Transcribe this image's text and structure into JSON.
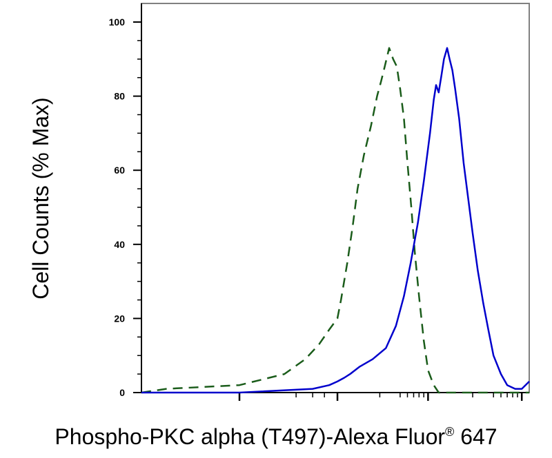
{
  "chart_data": {
    "type": "line",
    "title": "",
    "xlabel": "Phospho-PKC alpha (T497)-Alexa Fluor",
    "xlabel_sup": "®",
    "xlabel_suffix": " 647",
    "ylabel": "Cell Counts (% Max)",
    "x_scale": "log",
    "xlim": [
      -10,
      1200
    ],
    "ylim": [
      0,
      100
    ],
    "y_ticks": [
      0,
      20,
      40,
      60,
      80,
      100
    ],
    "y_tick_labels": [
      "0",
      "20",
      "40",
      "60",
      "80",
      "100"
    ],
    "grid": false,
    "legend": "none",
    "series": [
      {
        "color": "#1a5c1a",
        "dash": "dashed",
        "points": [
          [
            -10,
            0
          ],
          [
            -5,
            1
          ],
          [
            0,
            2
          ],
          [
            2,
            5
          ],
          [
            4,
            9
          ],
          [
            6,
            13
          ],
          [
            8,
            17
          ],
          [
            10,
            20
          ],
          [
            11,
            25
          ],
          [
            13,
            35
          ],
          [
            15,
            45
          ],
          [
            17,
            55
          ],
          [
            20,
            64
          ],
          [
            24,
            72
          ],
          [
            28,
            80
          ],
          [
            31,
            84
          ],
          [
            34,
            88
          ],
          [
            38,
            93
          ],
          [
            42,
            90
          ],
          [
            46,
            88
          ],
          [
            50,
            82
          ],
          [
            55,
            74
          ],
          [
            60,
            62
          ],
          [
            66,
            50
          ],
          [
            72,
            38
          ],
          [
            80,
            26
          ],
          [
            90,
            14
          ],
          [
            100,
            6
          ],
          [
            115,
            2
          ],
          [
            130,
            0
          ],
          [
            200,
            0
          ],
          [
            1200,
            0
          ]
        ]
      },
      {
        "color": "#0000cc",
        "dash": "solid",
        "points": [
          [
            -10,
            0
          ],
          [
            0,
            0
          ],
          [
            5,
            1
          ],
          [
            8,
            2
          ],
          [
            10,
            3
          ],
          [
            12,
            4
          ],
          [
            14,
            5
          ],
          [
            18,
            7
          ],
          [
            25,
            9
          ],
          [
            35,
            12
          ],
          [
            45,
            18
          ],
          [
            55,
            26
          ],
          [
            65,
            35
          ],
          [
            78,
            46
          ],
          [
            90,
            57
          ],
          [
            105,
            70
          ],
          [
            115,
            79
          ],
          [
            122,
            83
          ],
          [
            130,
            81
          ],
          [
            140,
            86
          ],
          [
            148,
            90
          ],
          [
            160,
            93
          ],
          [
            170,
            90
          ],
          [
            182,
            87
          ],
          [
            195,
            82
          ],
          [
            215,
            74
          ],
          [
            240,
            62
          ],
          [
            270,
            52
          ],
          [
            300,
            43
          ],
          [
            340,
            33
          ],
          [
            390,
            24
          ],
          [
            440,
            17
          ],
          [
            500,
            10
          ],
          [
            600,
            5
          ],
          [
            700,
            2
          ],
          [
            850,
            1
          ],
          [
            1000,
            1
          ],
          [
            1200,
            3
          ]
        ]
      }
    ]
  }
}
